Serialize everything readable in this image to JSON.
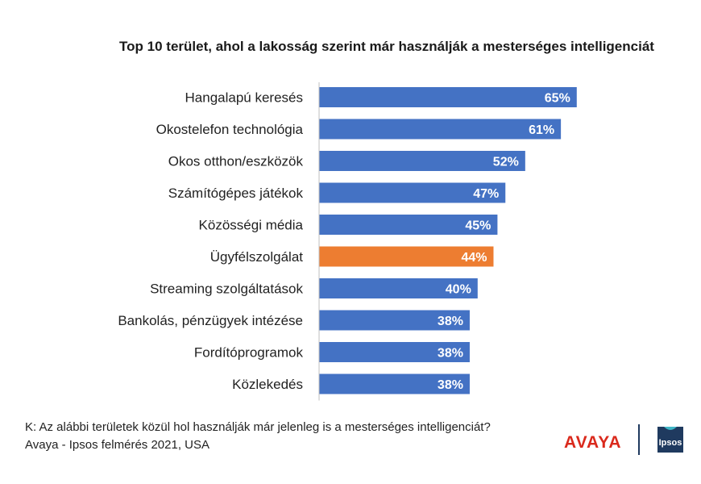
{
  "chart_data": {
    "type": "bar",
    "orientation": "horizontal",
    "title": "Top 10 terület, ahol a lakosság szerint már használják a mesterséges intelligenciát",
    "categories": [
      "Hangalapú keresés",
      "Okostelefon technológia",
      "Okos otthon/eszközök",
      "Számítógépes játékok",
      "Közösségi média",
      "Ügyfélszolgálat",
      "Streaming szolgáltatások",
      "Bankolás, pénzügyek intézése",
      "Fordítóprogramok",
      "Közlekedés"
    ],
    "values": [
      65,
      61,
      52,
      47,
      45,
      44,
      40,
      38,
      38,
      38
    ],
    "value_labels": [
      "65%",
      "61%",
      "52%",
      "47%",
      "45%",
      "44%",
      "40%",
      "38%",
      "38%",
      "38%"
    ],
    "unit": "%",
    "xlim": [
      0,
      100
    ],
    "grid": false,
    "legend": "none",
    "colors": {
      "default": "#4472c4",
      "highlight": "#ed7d31",
      "highlight_category": "Ügyfélszolgálat",
      "value_label": "#ffffff"
    }
  },
  "footer": {
    "question": "K: Az alábbi területek közül hol használják már jelenleg is a mesterséges intelligenciát?",
    "source": "Avaya - Ipsos felmérés 2021, USA"
  },
  "logos": {
    "avaya": "AVAYA",
    "ipsos": "Ipsos",
    "avaya_color": "#da291c",
    "ipsos_color": "#1f3a5f"
  }
}
